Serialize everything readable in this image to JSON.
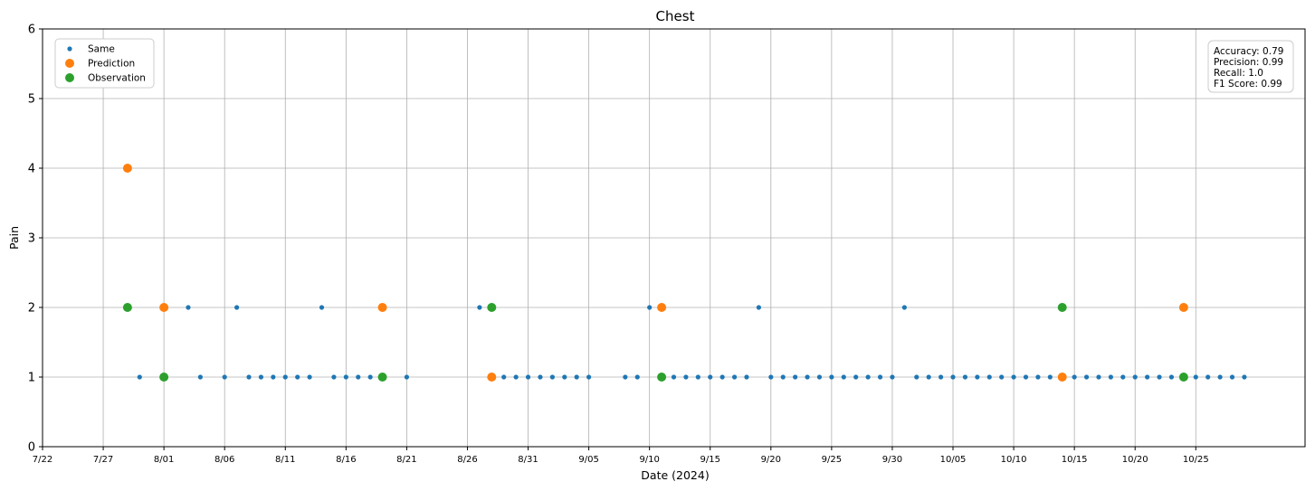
{
  "chart_data": {
    "type": "scatter",
    "title": "Chest",
    "xlabel": "Date (2024)",
    "ylabel": "Pain",
    "x_axis": {
      "type": "date",
      "start": "2024-07-22",
      "end": "2024-11-03",
      "tick_dates": [
        "2024-07-22",
        "2024-07-27",
        "2024-08-01",
        "2024-08-06",
        "2024-08-11",
        "2024-08-16",
        "2024-08-21",
        "2024-08-26",
        "2024-08-31",
        "2024-09-05",
        "2024-09-10",
        "2024-09-15",
        "2024-09-20",
        "2024-09-25",
        "2024-09-30",
        "2024-10-05",
        "2024-10-10",
        "2024-10-15",
        "2024-10-20",
        "2024-10-25"
      ],
      "tick_labels": [
        "7/22",
        "7/27",
        "8/01",
        "8/06",
        "8/11",
        "8/16",
        "8/21",
        "8/26",
        "8/31",
        "9/05",
        "9/10",
        "9/15",
        "9/20",
        "9/25",
        "9/30",
        "10/05",
        "10/10",
        "10/15",
        "10/20",
        "10/25"
      ]
    },
    "ylim": [
      0,
      6
    ],
    "yticks": [
      0,
      1,
      2,
      3,
      4,
      5,
      6
    ],
    "grid": true,
    "legend_position": "top-left",
    "series": [
      {
        "name": "Same",
        "color": "#1f77b4",
        "marker_size": "small",
        "points": [
          [
            "2024-07-30",
            1
          ],
          [
            "2024-08-03",
            2
          ],
          [
            "2024-08-04",
            1
          ],
          [
            "2024-08-06",
            1
          ],
          [
            "2024-08-07",
            2
          ],
          [
            "2024-08-08",
            1
          ],
          [
            "2024-08-09",
            1
          ],
          [
            "2024-08-10",
            1
          ],
          [
            "2024-08-11",
            1
          ],
          [
            "2024-08-12",
            1
          ],
          [
            "2024-08-13",
            1
          ],
          [
            "2024-08-14",
            2
          ],
          [
            "2024-08-15",
            1
          ],
          [
            "2024-08-16",
            1
          ],
          [
            "2024-08-17",
            1
          ],
          [
            "2024-08-18",
            1
          ],
          [
            "2024-08-21",
            1
          ],
          [
            "2024-08-27",
            2
          ],
          [
            "2024-08-29",
            1
          ],
          [
            "2024-08-30",
            1
          ],
          [
            "2024-08-31",
            1
          ],
          [
            "2024-09-01",
            1
          ],
          [
            "2024-09-02",
            1
          ],
          [
            "2024-09-03",
            1
          ],
          [
            "2024-09-04",
            1
          ],
          [
            "2024-09-05",
            1
          ],
          [
            "2024-09-08",
            1
          ],
          [
            "2024-09-09",
            1
          ],
          [
            "2024-09-10",
            2
          ],
          [
            "2024-09-12",
            1
          ],
          [
            "2024-09-13",
            1
          ],
          [
            "2024-09-14",
            1
          ],
          [
            "2024-09-15",
            1
          ],
          [
            "2024-09-16",
            1
          ],
          [
            "2024-09-17",
            1
          ],
          [
            "2024-09-18",
            1
          ],
          [
            "2024-09-19",
            2
          ],
          [
            "2024-09-20",
            1
          ],
          [
            "2024-09-21",
            1
          ],
          [
            "2024-09-22",
            1
          ],
          [
            "2024-09-23",
            1
          ],
          [
            "2024-09-24",
            1
          ],
          [
            "2024-09-25",
            1
          ],
          [
            "2024-09-26",
            1
          ],
          [
            "2024-09-27",
            1
          ],
          [
            "2024-09-28",
            1
          ],
          [
            "2024-09-29",
            1
          ],
          [
            "2024-09-30",
            1
          ],
          [
            "2024-10-01",
            2
          ],
          [
            "2024-10-02",
            1
          ],
          [
            "2024-10-03",
            1
          ],
          [
            "2024-10-04",
            1
          ],
          [
            "2024-10-05",
            1
          ],
          [
            "2024-10-06",
            1
          ],
          [
            "2024-10-07",
            1
          ],
          [
            "2024-10-08",
            1
          ],
          [
            "2024-10-09",
            1
          ],
          [
            "2024-10-10",
            1
          ],
          [
            "2024-10-11",
            1
          ],
          [
            "2024-10-12",
            1
          ],
          [
            "2024-10-13",
            1
          ],
          [
            "2024-10-15",
            1
          ],
          [
            "2024-10-16",
            1
          ],
          [
            "2024-10-17",
            1
          ],
          [
            "2024-10-18",
            1
          ],
          [
            "2024-10-19",
            1
          ],
          [
            "2024-10-20",
            1
          ],
          [
            "2024-10-21",
            1
          ],
          [
            "2024-10-22",
            1
          ],
          [
            "2024-10-23",
            1
          ],
          [
            "2024-10-25",
            1
          ],
          [
            "2024-10-26",
            1
          ],
          [
            "2024-10-27",
            1
          ],
          [
            "2024-10-28",
            1
          ],
          [
            "2024-10-29",
            1
          ]
        ]
      },
      {
        "name": "Prediction",
        "color": "#ff7f0e",
        "marker_size": "large",
        "points": [
          [
            "2024-07-29",
            4
          ],
          [
            "2024-08-01",
            2
          ],
          [
            "2024-08-19",
            2
          ],
          [
            "2024-08-28",
            1
          ],
          [
            "2024-09-11",
            2
          ],
          [
            "2024-10-14",
            1
          ],
          [
            "2024-10-24",
            2
          ]
        ]
      },
      {
        "name": "Observation",
        "color": "#2ca02c",
        "marker_size": "large",
        "points": [
          [
            "2024-07-29",
            2
          ],
          [
            "2024-08-01",
            1
          ],
          [
            "2024-08-19",
            1
          ],
          [
            "2024-08-28",
            2
          ],
          [
            "2024-09-11",
            1
          ],
          [
            "2024-10-14",
            2
          ],
          [
            "2024-10-24",
            1
          ]
        ]
      }
    ],
    "metrics": [
      "Accuracy: 0.79",
      "Precision: 0.99",
      "Recall: 1.0",
      "F1 Score: 0.99"
    ]
  }
}
